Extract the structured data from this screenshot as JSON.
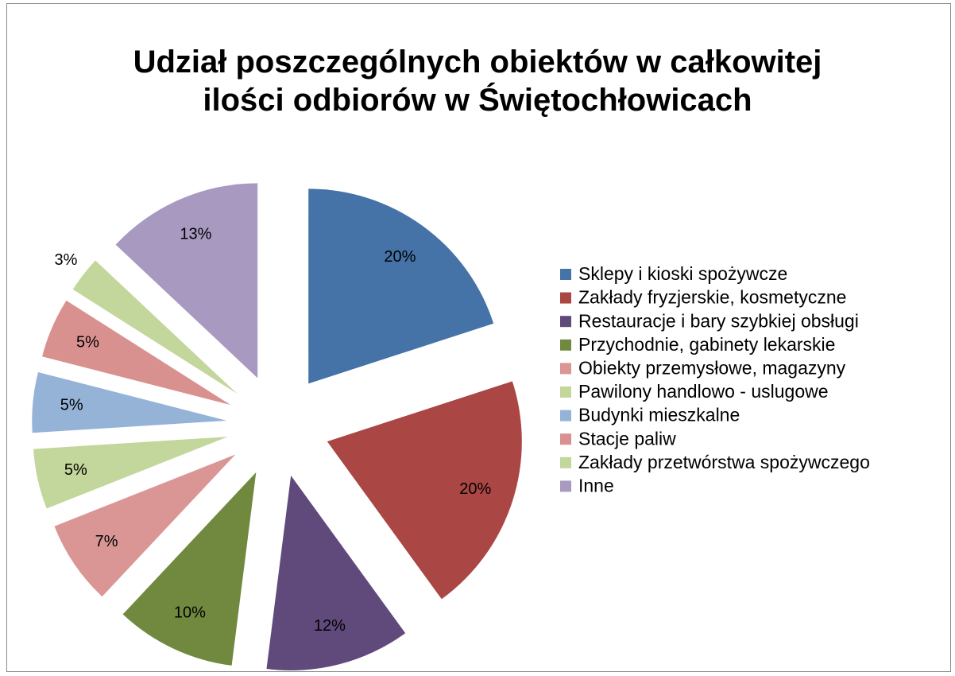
{
  "chart_data": {
    "type": "pie",
    "title": "Udział poszczególnych obiektów w całkowitej ilości odbiorów w Świętochłowicach",
    "categories": [
      "Sklepy i kioski spożywcze",
      "Zakłady fryzjerskie, kosmetyczne",
      "Restauracje i bary szybkiej obsługi",
      "Przychodnie, gabinety lekarskie",
      "Obiekty przemysłowe, magazyny",
      "Pawilony handlowo - uslugowe",
      "Budynki mieszkalne",
      "Stacje paliw",
      "Zakłady przetwórstwa spożywczego",
      "Inne"
    ],
    "values": [
      20,
      20,
      12,
      10,
      7,
      5,
      5,
      5,
      3,
      13
    ],
    "value_labels": [
      "20%",
      "20%",
      "12%",
      "10%",
      "7%",
      "5%",
      "5%",
      "5%",
      "3%",
      "13%"
    ],
    "colors": [
      "#4572a7",
      "#aa4643",
      "#604a7b",
      "#71893f",
      "#d99694",
      "#c3d69b",
      "#95b3d7",
      "#d9918f",
      "#c3d69b",
      "#a899c1"
    ],
    "legend": "right"
  }
}
